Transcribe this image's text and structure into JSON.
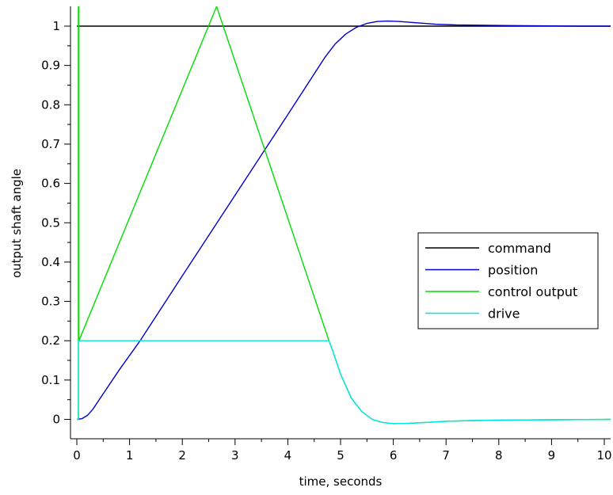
{
  "chart_data": {
    "type": "line",
    "xlabel": "time, seconds",
    "ylabel": "output shaft angle",
    "xlim": [
      -0.12,
      10.12
    ],
    "ylim": [
      -0.05,
      1.05
    ],
    "xticks": [
      0,
      1,
      2,
      3,
      4,
      5,
      6,
      7,
      8,
      9,
      10
    ],
    "yticks": [
      0,
      0.1,
      0.2,
      0.3,
      0.4,
      0.5,
      0.6,
      0.7,
      0.8,
      0.9,
      1
    ],
    "xtick_labels": [
      "0",
      "1",
      "2",
      "3",
      "4",
      "5",
      "6",
      "7",
      "8",
      "9",
      "10"
    ],
    "ytick_labels": [
      "0",
      "0.1",
      "0.2",
      "0.3",
      "0.4",
      "0.5",
      "0.6",
      "0.7",
      "0.8",
      "0.9",
      "1"
    ],
    "grid": false,
    "legend_position": "right",
    "series": [
      {
        "name": "command",
        "color": "#000000",
        "x": [
          0,
          10.12
        ],
        "y": [
          1,
          1
        ]
      },
      {
        "name": "position",
        "color": "#0000cc",
        "x": [
          0,
          0.1,
          0.2,
          0.3,
          0.5,
          0.8,
          1.2,
          2.0,
          3.0,
          4.0,
          4.7,
          4.9,
          5.1,
          5.3,
          5.5,
          5.7,
          5.9,
          6.1,
          6.4,
          6.8,
          7.2,
          7.8,
          8.5,
          9.5,
          10.12
        ],
        "y": [
          0,
          0.002,
          0.01,
          0.025,
          0.065,
          0.125,
          0.2,
          0.365,
          0.57,
          0.775,
          0.92,
          0.955,
          0.98,
          0.997,
          1.007,
          1.012,
          1.013,
          1.012,
          1.009,
          1.005,
          1.003,
          1.002,
          1.001,
          1.0,
          1.0
        ]
      },
      {
        "name": "control output",
        "color": "#00dd00",
        "x": [
          0,
          0.03,
          0.03,
          0.04,
          0.04,
          2.65,
          4.78,
          4.85,
          5.0,
          5.2,
          5.4,
          5.6,
          5.8,
          6.0,
          6.3,
          6.6,
          7.0,
          7.5,
          8.0,
          9.0,
          10.12
        ],
        "y": [
          0.0,
          0.0,
          1.05,
          1.05,
          0.2,
          1.05,
          0.2,
          0.175,
          0.115,
          0.055,
          0.02,
          0.0,
          -0.008,
          -0.011,
          -0.01,
          -0.008,
          -0.005,
          -0.003,
          -0.002,
          -0.001,
          0.0
        ]
      },
      {
        "name": "drive",
        "color": "#00e5e5",
        "x": [
          0,
          0.03,
          0.03,
          4.78,
          4.85,
          5.0,
          5.2,
          5.4,
          5.6,
          5.8,
          6.0,
          6.3,
          6.6,
          7.0,
          7.5,
          8.0,
          9.0,
          10.12
        ],
        "y": [
          0.0,
          0.0,
          0.2,
          0.2,
          0.175,
          0.115,
          0.055,
          0.02,
          0.0,
          -0.008,
          -0.011,
          -0.01,
          -0.008,
          -0.005,
          -0.003,
          -0.002,
          -0.001,
          0.0
        ]
      }
    ]
  }
}
